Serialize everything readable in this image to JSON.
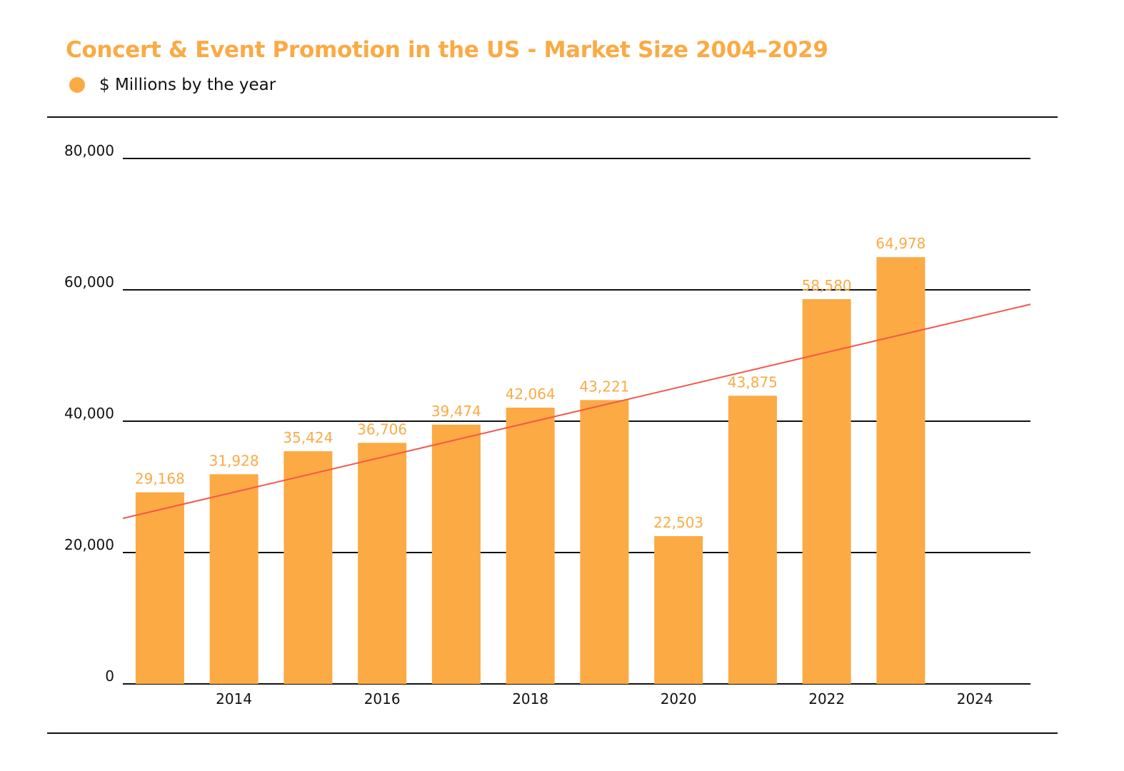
{
  "header": {
    "title": "Concert & Event Promotion in the US - Market Size 2004–2029",
    "legend_label": "$ Millions by the year"
  },
  "chart_data": {
    "type": "bar",
    "title": "Concert & Event Promotion in the US - Market Size 2004–2029",
    "xlabel": "",
    "ylabel": "",
    "series": [
      {
        "name": "$ Millions by the year",
        "color": "#FBAA44",
        "x": [
          2013,
          2014,
          2015,
          2016,
          2017,
          2018,
          2019,
          2020,
          2021,
          2022,
          2023
        ],
        "values": [
          29168,
          31928,
          35424,
          36706,
          39474,
          42064,
          43221,
          22503,
          43875,
          58580,
          64978
        ],
        "data_labels": [
          "29,168",
          "31,928",
          "35,424",
          "36,706",
          "39,474",
          "42,064",
          "43,221",
          "22,503",
          "43,875",
          "58,580",
          "64,978"
        ]
      }
    ],
    "trendline": {
      "color": "#F4574A",
      "start": {
        "x": 2012.5,
        "y": 25200
      },
      "end": {
        "x": 2024.75,
        "y": 57800
      }
    },
    "x_ticks": [
      2014,
      2016,
      2018,
      2020,
      2022,
      2024
    ],
    "x_tick_labels": [
      "2014",
      "2016",
      "2018",
      "2020",
      "2022",
      "2024"
    ],
    "xlim": [
      2012.5,
      2024.75
    ],
    "y_ticks": [
      0,
      20000,
      40000,
      60000,
      80000
    ],
    "y_tick_labels": [
      "0",
      "20,000",
      "40,000",
      "60,000",
      "80,000"
    ],
    "ylim": [
      0,
      80000
    ],
    "grid": true,
    "legend_position": "top-left",
    "label_color": "#FBAA44",
    "grid_color": "#111111"
  }
}
